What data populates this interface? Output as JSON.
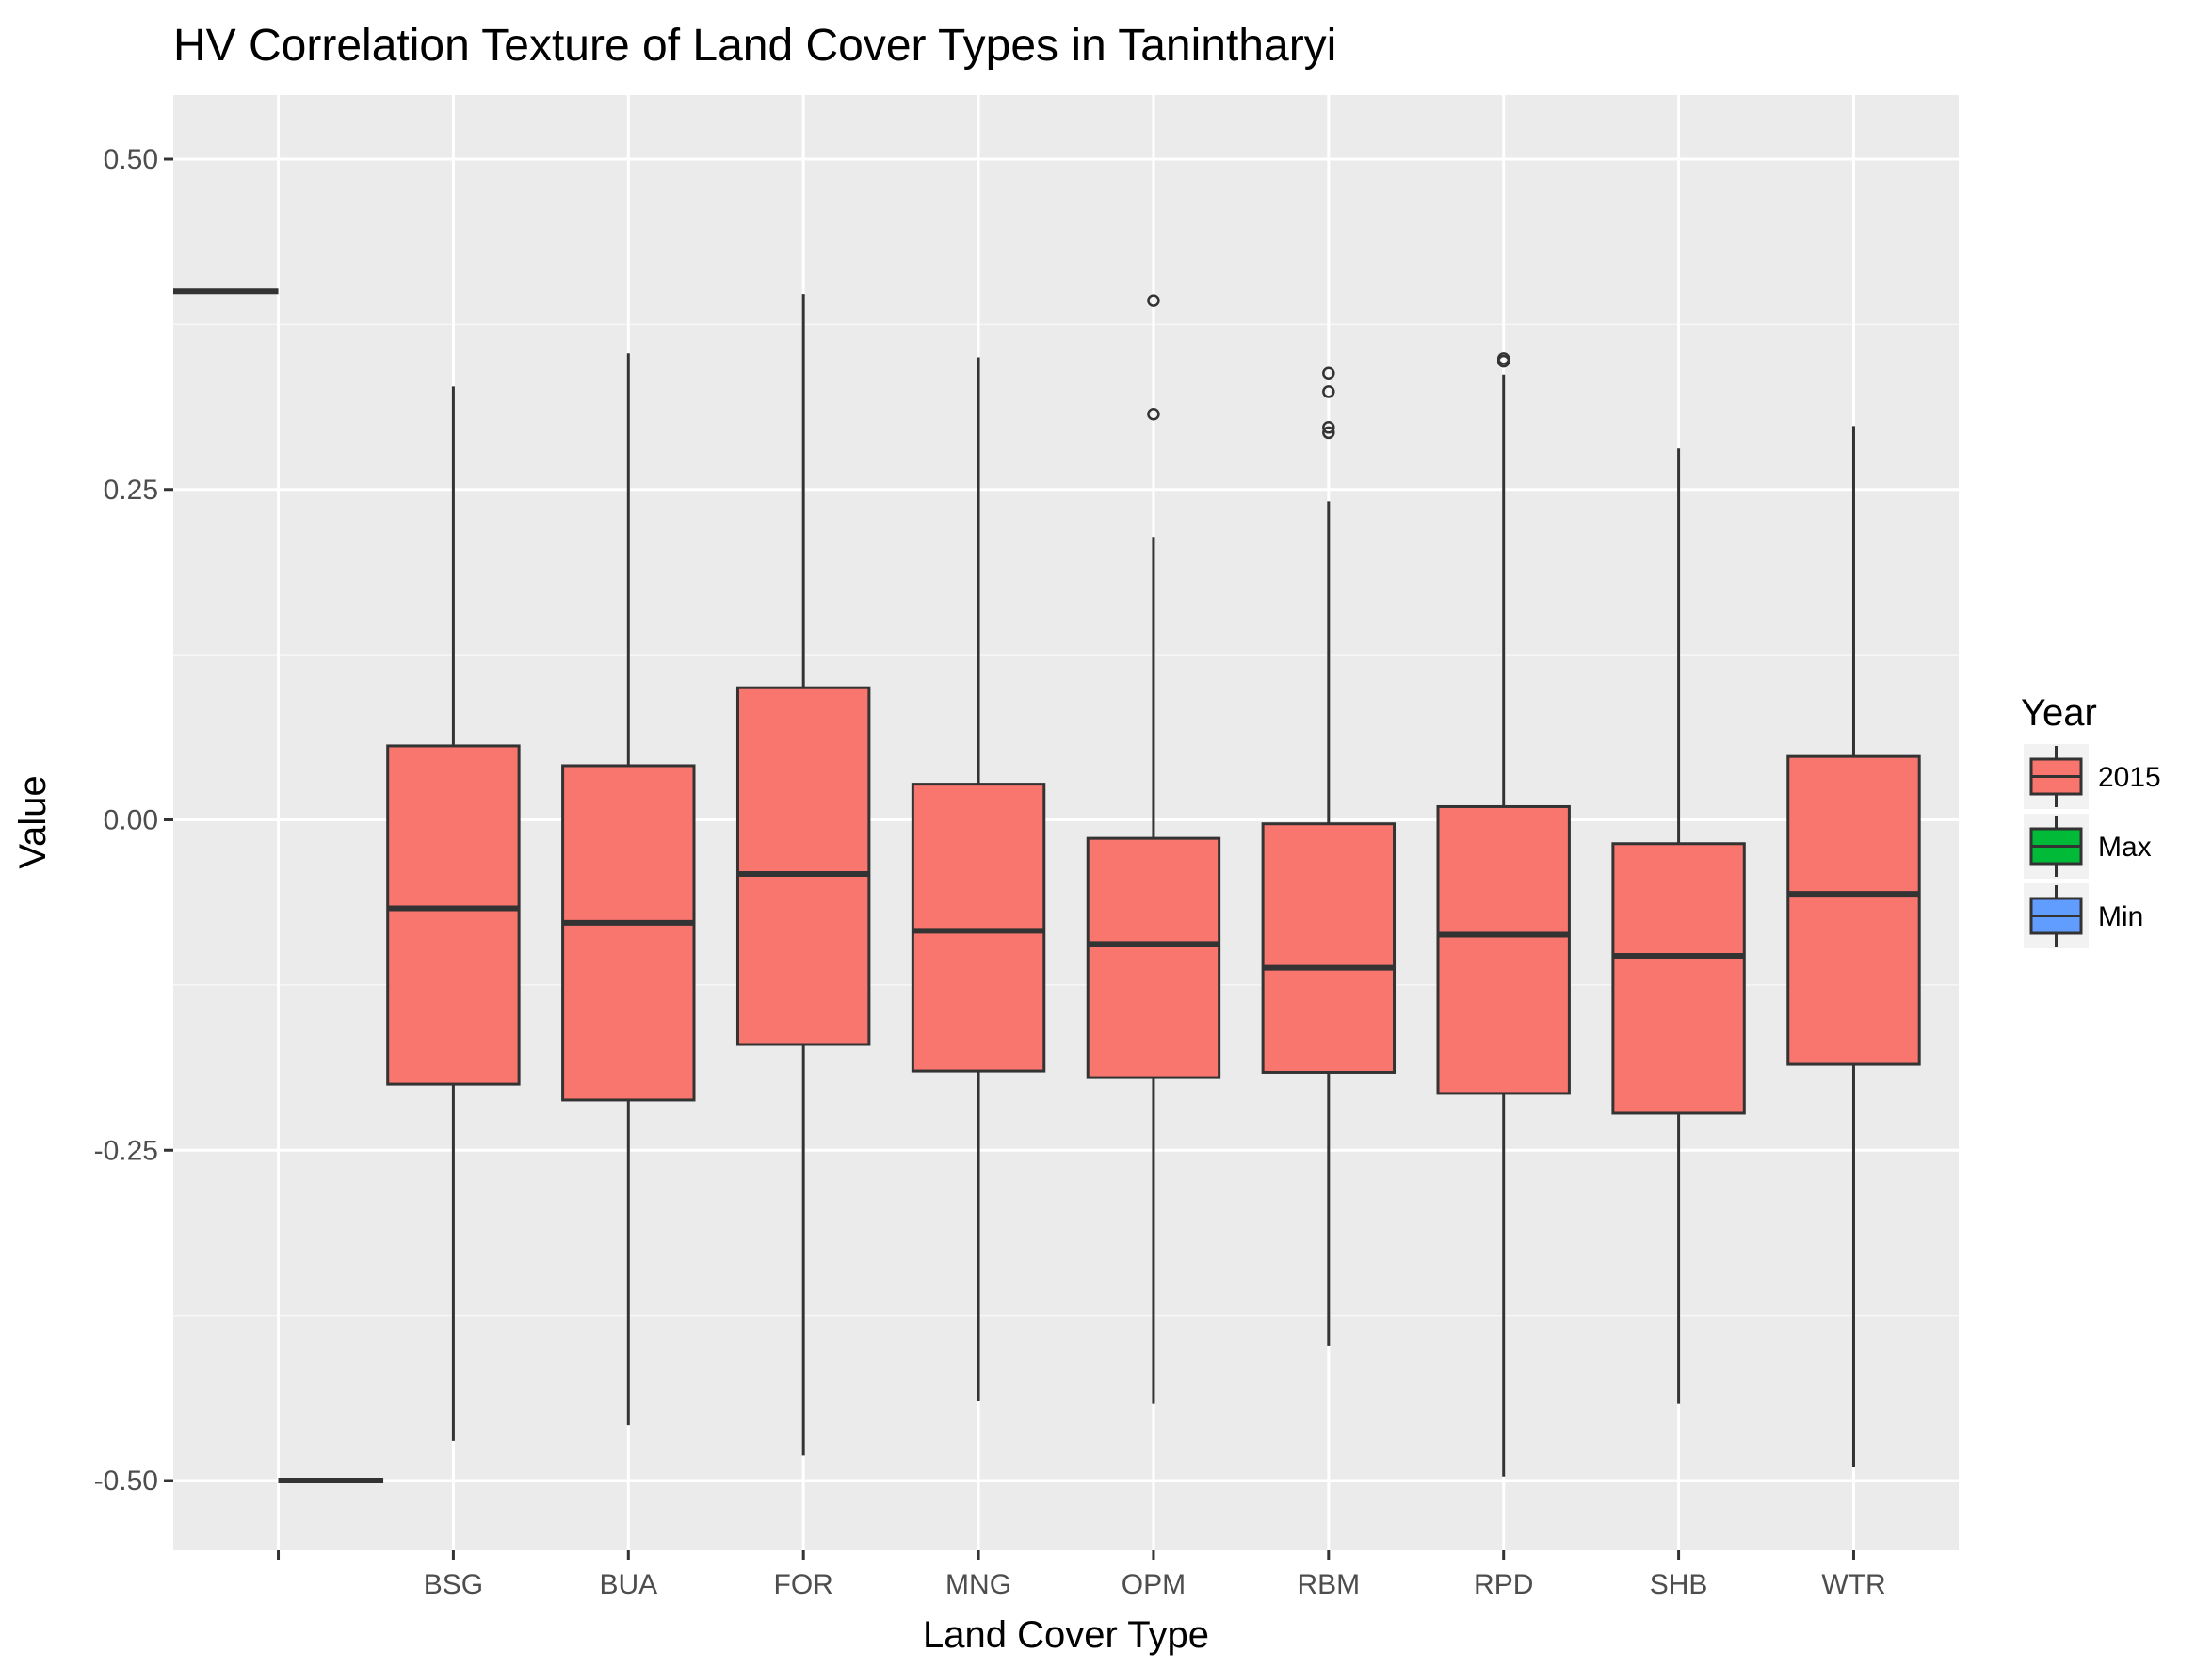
{
  "chart_data": {
    "type": "boxplot",
    "title": "HV Correlation Texture of Land Cover Types in Tanintharyi",
    "xlabel": "Land Cover Type",
    "ylabel": "Value",
    "ylim": [
      -0.55,
      0.55
    ],
    "yticks": [
      -0.5,
      -0.25,
      0.0,
      0.25,
      0.5
    ],
    "ytick_labels": [
      "-0.50",
      "-0.25",
      "0.00",
      "0.25",
      "0.50"
    ],
    "categories": [
      "",
      "BSG",
      "BUA",
      "FOR",
      "MNG",
      "OPM",
      "RBM",
      "RPD",
      "SHB",
      "WTR"
    ],
    "grid": true,
    "legend": {
      "title": "Year",
      "position": "right",
      "items": [
        {
          "label": "2015",
          "color": "#F8766D"
        },
        {
          "label": "Max",
          "color": "#00BA38"
        },
        {
          "label": "Min",
          "color": "#619CFF"
        }
      ]
    },
    "segments": [
      {
        "category": "",
        "group": "Max",
        "value": 0.4,
        "offset": -1
      },
      {
        "category": "",
        "group": "Min",
        "value": -0.5,
        "offset": 1
      }
    ],
    "boxes": [
      {
        "category": "BSG",
        "group": "2015",
        "whisker_low": -0.47,
        "q1": -0.2,
        "median": -0.067,
        "q3": 0.056,
        "whisker_high": 0.328,
        "outliers": []
      },
      {
        "category": "BUA",
        "group": "2015",
        "whisker_low": -0.458,
        "q1": -0.212,
        "median": -0.078,
        "q3": 0.041,
        "whisker_high": 0.353,
        "outliers": []
      },
      {
        "category": "FOR",
        "group": "2015",
        "whisker_low": -0.481,
        "q1": -0.17,
        "median": -0.041,
        "q3": 0.1,
        "whisker_high": 0.398,
        "outliers": []
      },
      {
        "category": "MNG",
        "group": "2015",
        "whisker_low": -0.44,
        "q1": -0.19,
        "median": -0.084,
        "q3": 0.027,
        "whisker_high": 0.35,
        "outliers": []
      },
      {
        "category": "OPM",
        "group": "2015",
        "whisker_low": -0.442,
        "q1": -0.195,
        "median": -0.094,
        "q3": -0.014,
        "whisker_high": 0.214,
        "outliers": [
          0.393,
          0.307
        ]
      },
      {
        "category": "RBM",
        "group": "2015",
        "whisker_low": -0.398,
        "q1": -0.191,
        "median": -0.112,
        "q3": -0.003,
        "whisker_high": 0.241,
        "outliers": [
          0.338,
          0.324,
          0.297,
          0.293
        ]
      },
      {
        "category": "RPD",
        "group": "2015",
        "whisker_low": -0.497,
        "q1": -0.207,
        "median": -0.087,
        "q3": 0.01,
        "whisker_high": 0.337,
        "outliers": [
          0.349,
          0.347
        ]
      },
      {
        "category": "SHB",
        "group": "2015",
        "whisker_low": -0.442,
        "q1": -0.222,
        "median": -0.103,
        "q3": -0.018,
        "whisker_high": 0.281,
        "outliers": []
      },
      {
        "category": "WTR",
        "group": "2015",
        "whisker_low": -0.49,
        "q1": -0.185,
        "median": -0.056,
        "q3": 0.048,
        "whisker_high": 0.298,
        "outliers": []
      }
    ]
  }
}
